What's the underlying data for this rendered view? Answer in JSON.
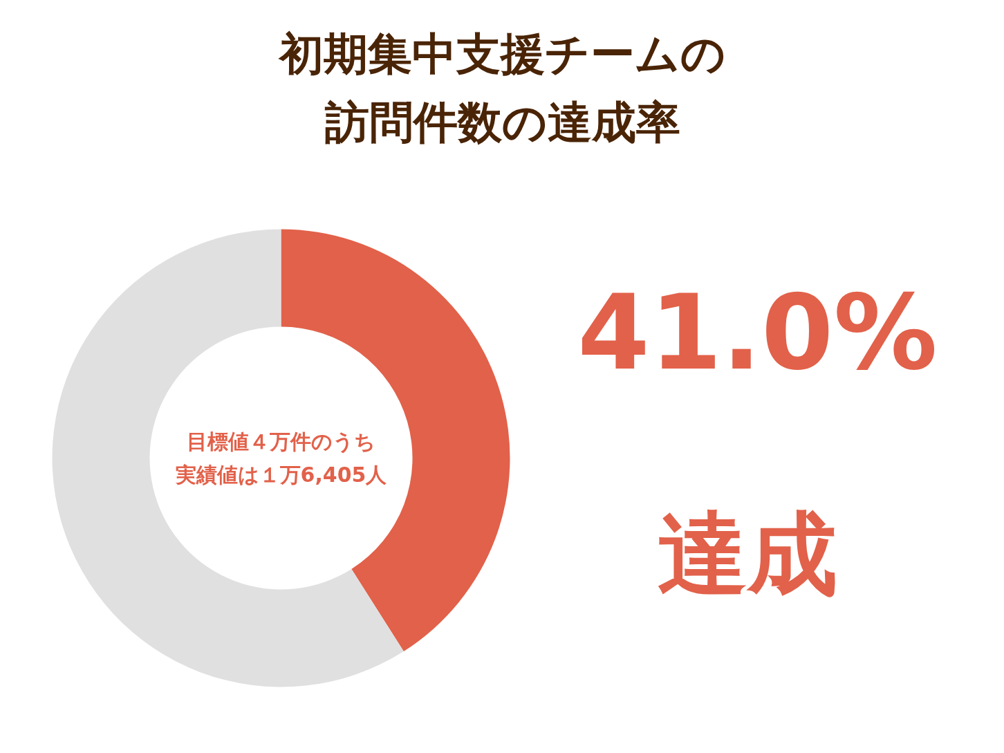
{
  "chart_data": {
    "type": "donut",
    "title": "初期集中支援チームの訪問件数の達成率",
    "categories": [
      null,
      null
    ],
    "values": [
      41.0,
      59.0
    ],
    "colors": [
      "#e2614a",
      "#e0e0e0"
    ],
    "annotations": [
      "目標値４万件のうち",
      "実績値は１万6,405人",
      "41.0%",
      "達成"
    ]
  }
}
